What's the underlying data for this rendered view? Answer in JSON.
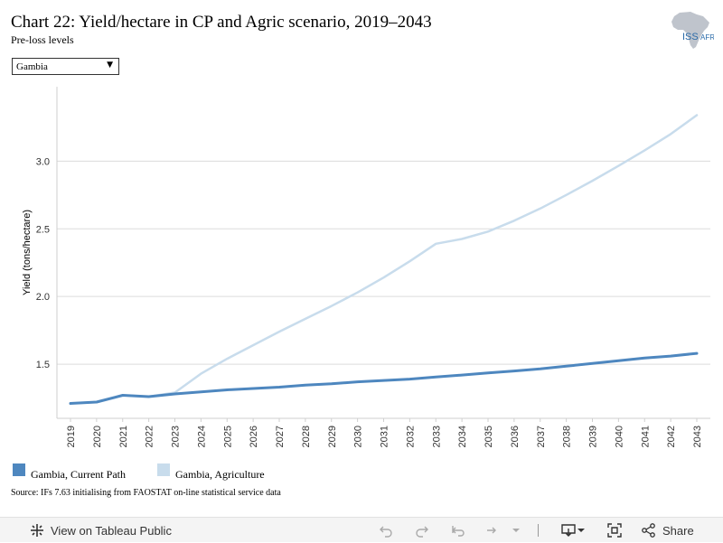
{
  "header": {
    "title": "Chart 22: Yield/hectare in CP and Agric scenario, 2019–2043",
    "subtitle": "Pre-loss levels"
  },
  "logo": {
    "text_iss": "ISS",
    "text_afr": "AFR",
    "icon": "africa-map-icon"
  },
  "selector": {
    "value": "Gambia",
    "icon": "caret-down-icon"
  },
  "legend": {
    "items": [
      {
        "label": "Gambia, Current Path",
        "color": "#4e87bf"
      },
      {
        "label": "Gambia, Agriculture",
        "color": "#c8dcec"
      }
    ]
  },
  "source": "Source: IFs 7.63 initialising from FAOSTAT on-line statistical service data",
  "toolbar": {
    "view_label": "View on Tableau Public",
    "share_label": "Share",
    "icons": [
      "tableau-logo-icon",
      "undo-icon",
      "redo-icon",
      "revert-icon",
      "refresh-icon",
      "pause-dropdown-icon",
      "download-icon",
      "fullscreen-icon",
      "share-icon"
    ]
  },
  "chart_data": {
    "type": "line",
    "xlabel": "",
    "ylabel": "Yield (tons/hectare)",
    "ylim": [
      1.1,
      3.55
    ],
    "yticks": [
      1.5,
      2.0,
      2.5,
      3.0
    ],
    "ytick_labels": [
      "1.5",
      "2.0",
      "2.5",
      "3.0"
    ],
    "grid": true,
    "x": [
      2019,
      2020,
      2021,
      2022,
      2023,
      2024,
      2025,
      2026,
      2027,
      2028,
      2029,
      2030,
      2031,
      2032,
      2033,
      2034,
      2035,
      2036,
      2037,
      2038,
      2039,
      2040,
      2041,
      2042,
      2043
    ],
    "xtick_labels": [
      "2019",
      "2020",
      "2021",
      "2022",
      "2023",
      "2024",
      "2025",
      "2026",
      "2027",
      "2028",
      "2029",
      "2030",
      "2031",
      "2032",
      "2033",
      "2034",
      "2035",
      "2036",
      "2037",
      "2038",
      "2039",
      "2040",
      "2041",
      "2042",
      "2043"
    ],
    "series": [
      {
        "name": "Gambia, Current Path",
        "color": "#4e87bf",
        "values": [
          1.21,
          1.22,
          1.27,
          1.26,
          1.28,
          1.295,
          1.31,
          1.32,
          1.33,
          1.345,
          1.355,
          1.37,
          1.38,
          1.39,
          1.405,
          1.42,
          1.435,
          1.45,
          1.465,
          1.485,
          1.505,
          1.525,
          1.545,
          1.56,
          1.58
        ]
      },
      {
        "name": "Gambia, Agriculture",
        "color": "#c8dcec",
        "values": [
          1.21,
          1.22,
          1.27,
          1.26,
          1.29,
          1.43,
          1.54,
          1.64,
          1.74,
          1.835,
          1.93,
          2.03,
          2.14,
          2.26,
          2.39,
          2.425,
          2.48,
          2.56,
          2.65,
          2.75,
          2.855,
          2.965,
          3.08,
          3.2,
          3.34
        ]
      }
    ]
  }
}
